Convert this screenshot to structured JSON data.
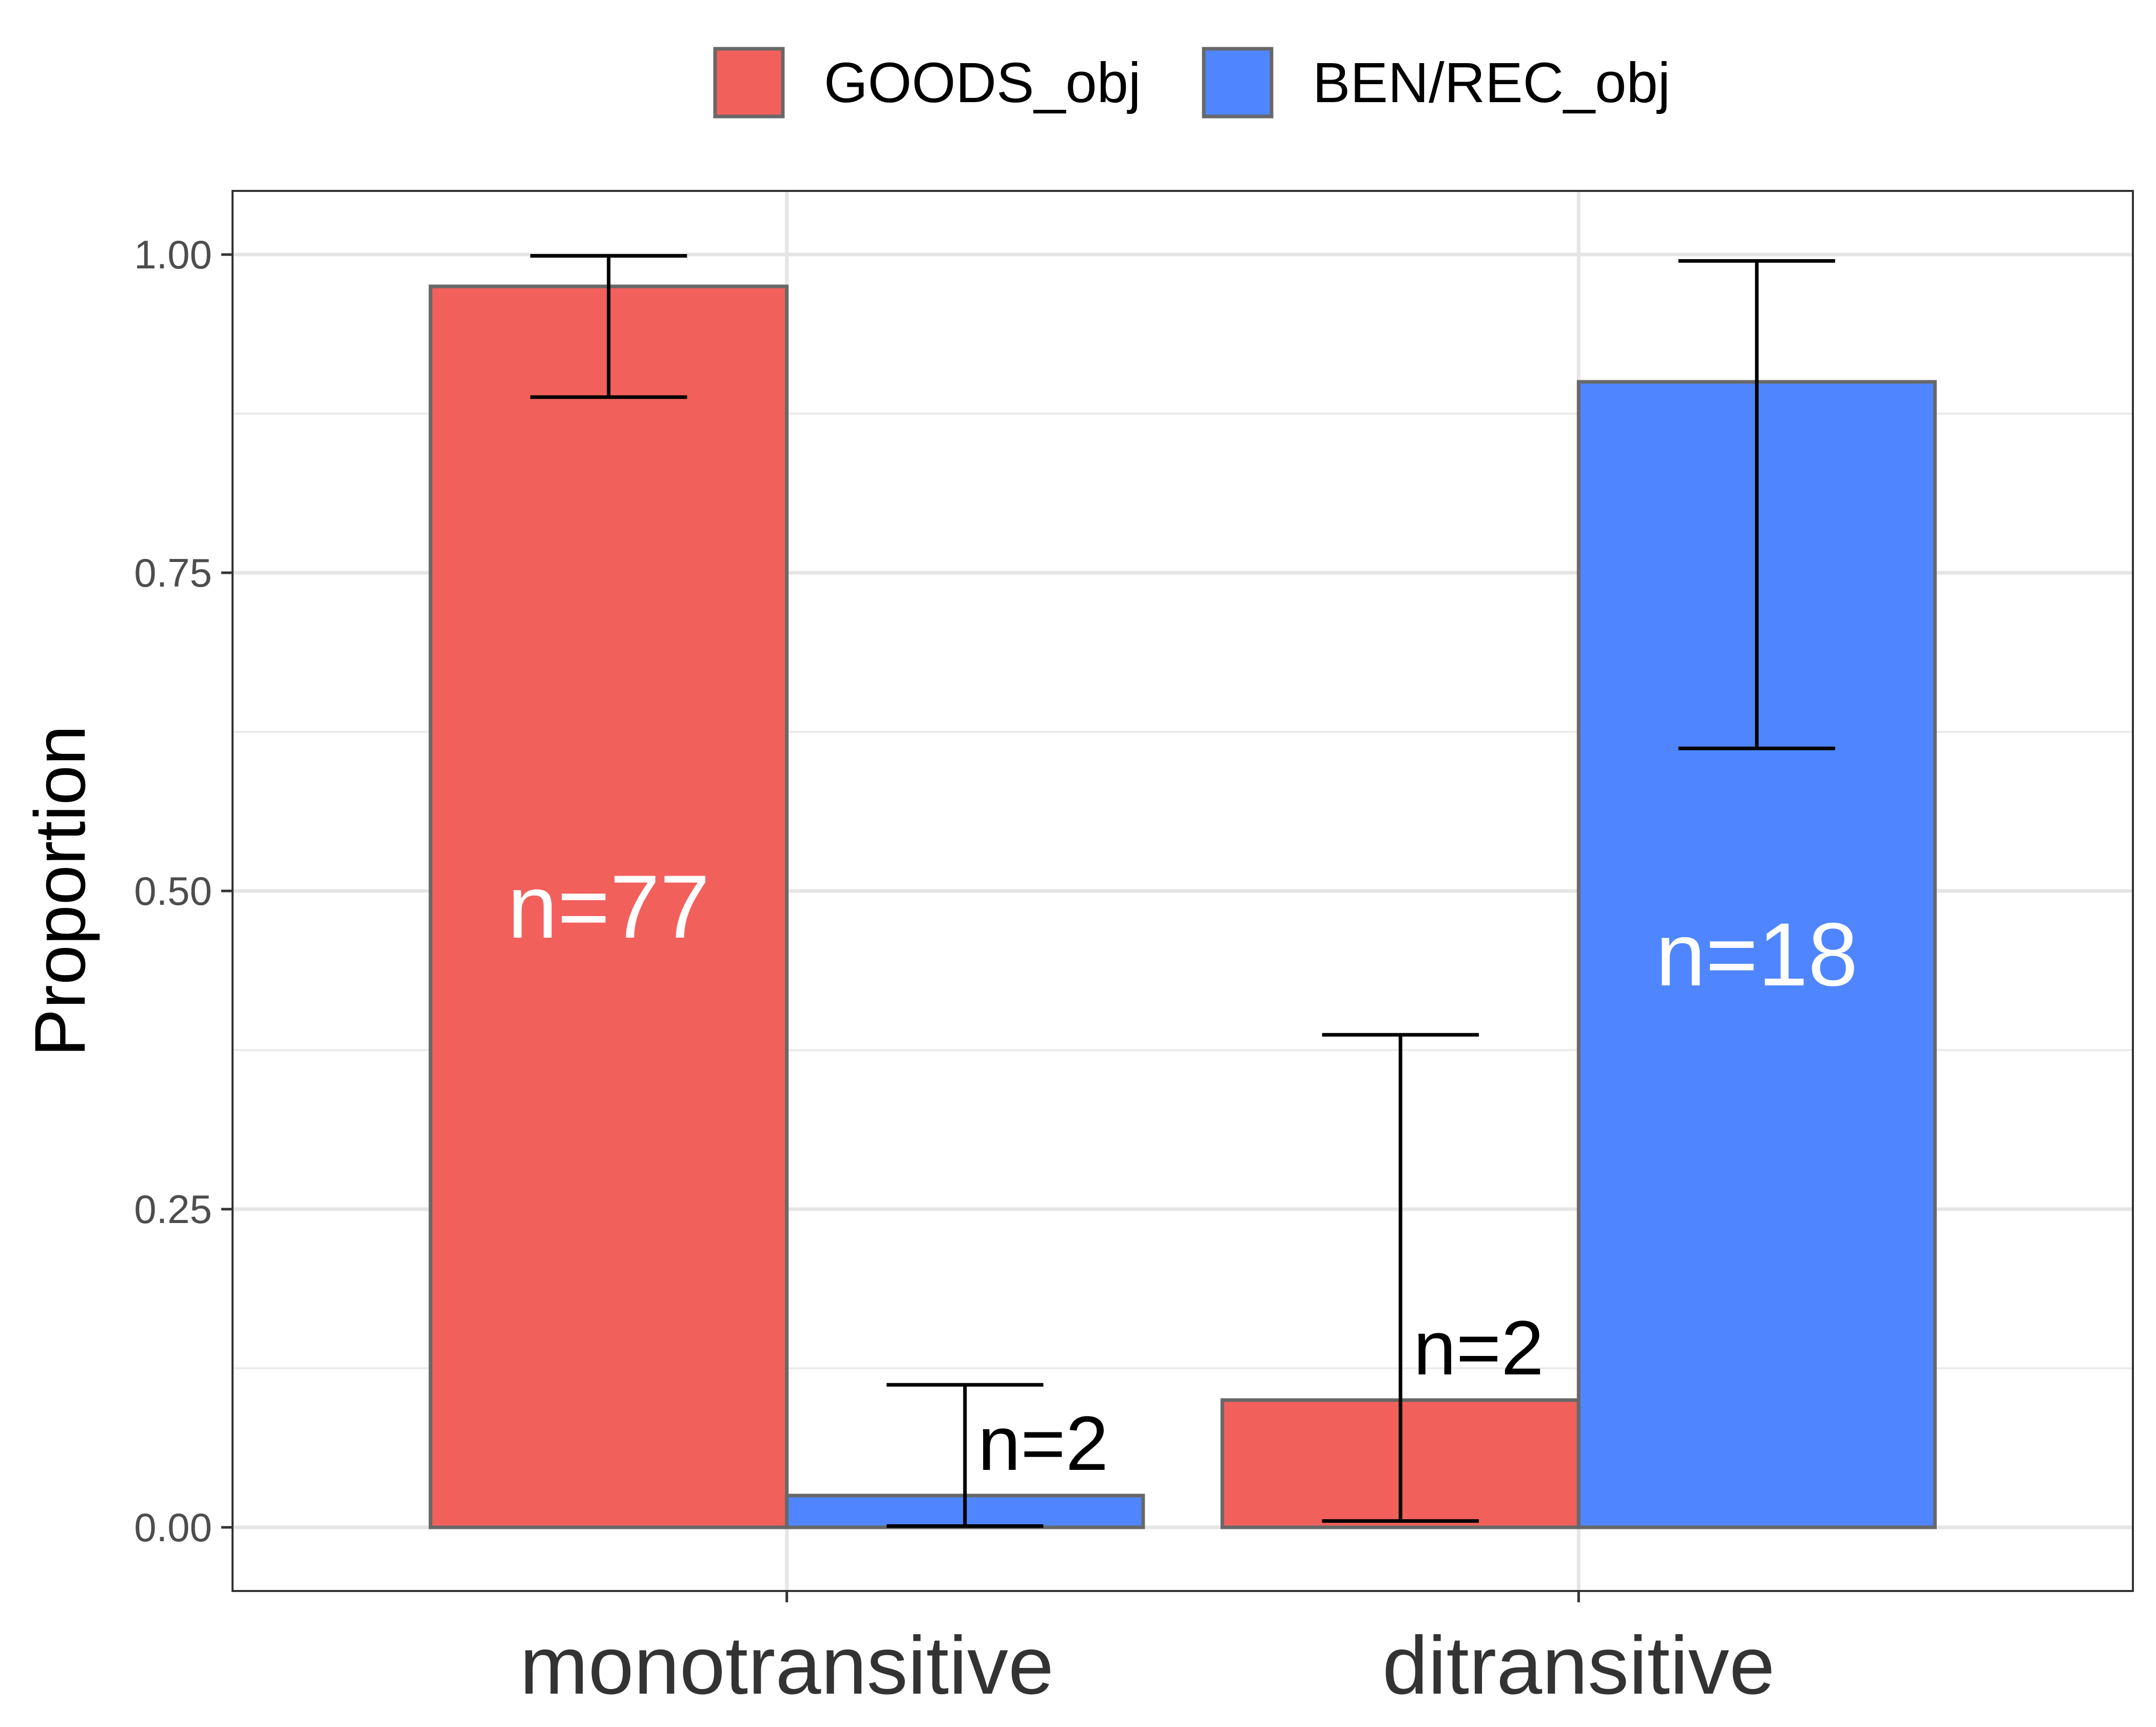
{
  "chart_data": {
    "type": "bar",
    "ylabel": "Proportion",
    "xlabel": "",
    "categories": [
      "monotransitive",
      "ditransitive"
    ],
    "ylim": [
      -0.05,
      1.05
    ],
    "yticks": [
      {
        "value": 0.0,
        "label": "0.00"
      },
      {
        "value": 0.25,
        "label": "0.25"
      },
      {
        "value": 0.5,
        "label": "0.50"
      },
      {
        "value": 0.75,
        "label": "0.75"
      },
      {
        "value": 1.0,
        "label": "1.00"
      }
    ],
    "grid": true,
    "legend_position": "top",
    "series": [
      {
        "name": "GOODS_obj",
        "color": "#F2605C",
        "values": [
          0.975,
          0.1
        ],
        "error_low": [
          0.888,
          0.005
        ],
        "error_high": [
          0.999,
          0.387
        ],
        "labels": [
          "n=77",
          "n=2"
        ]
      },
      {
        "name": "BEN/REC_obj",
        "color": "#4F86FF",
        "values": [
          0.025,
          0.9
        ],
        "error_low": [
          0.001,
          0.612
        ],
        "error_high": [
          0.112,
          0.995
        ],
        "labels": [
          "n=2",
          "n=18"
        ]
      }
    ]
  }
}
